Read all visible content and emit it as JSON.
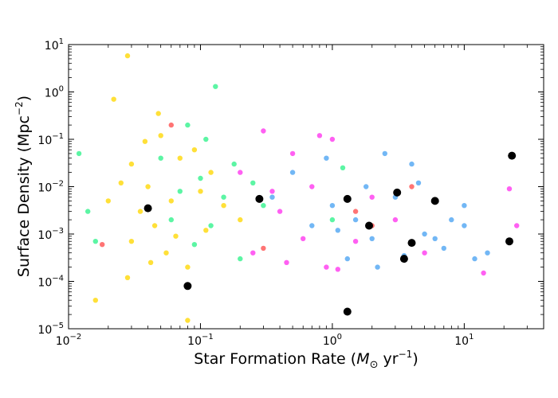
{
  "chart_data": {
    "type": "scatter",
    "xlabel_main": "Star Formation Rate (",
    "xlabel_sym": "M",
    "xlabel_sub": "⊙",
    "xlabel_rest": " yr",
    "xlabel_sup": "−1",
    "xlabel_close": ")",
    "ylabel_main": "Surface Density (Mpc",
    "ylabel_sup": "−2",
    "ylabel_close": ")",
    "xscale": "log",
    "yscale": "log",
    "xlim": [
      0.01,
      40
    ],
    "ylim": [
      1e-05,
      10
    ],
    "x_ticks": [
      {
        "value": 0.01,
        "base": "10",
        "exp": "−2"
      },
      {
        "value": 0.1,
        "base": "10",
        "exp": "−1"
      },
      {
        "value": 1,
        "base": "10",
        "exp": "0"
      },
      {
        "value": 10,
        "base": "10",
        "exp": "1"
      }
    ],
    "y_ticks": [
      {
        "value": 1e-05,
        "base": "10",
        "exp": "−5"
      },
      {
        "value": 0.0001,
        "base": "10",
        "exp": "−4"
      },
      {
        "value": 0.001,
        "base": "10",
        "exp": "−3"
      },
      {
        "value": 0.01,
        "base": "10",
        "exp": "−2"
      },
      {
        "value": 0.1,
        "base": "10",
        "exp": "−1"
      },
      {
        "value": 1,
        "base": "10",
        "exp": "0"
      },
      {
        "value": 10,
        "base": "10",
        "exp": "1"
      }
    ],
    "grid": false,
    "legend": "none",
    "series": [
      {
        "color": "#ffd700",
        "points": [
          {
            "x": 0.028,
            "y": 5.8
          },
          {
            "x": 0.022,
            "y": 0.7
          },
          {
            "x": 0.05,
            "y": 0.12
          },
          {
            "x": 0.03,
            "y": 0.03
          },
          {
            "x": 0.04,
            "y": 0.01
          },
          {
            "x": 0.06,
            "y": 0.005
          },
          {
            "x": 0.035,
            "y": 0.003
          },
          {
            "x": 0.1,
            "y": 0.008
          },
          {
            "x": 0.12,
            "y": 0.02
          },
          {
            "x": 0.07,
            "y": 0.04
          },
          {
            "x": 0.045,
            "y": 0.0015
          },
          {
            "x": 0.03,
            "y": 0.0007
          },
          {
            "x": 0.055,
            "y": 0.0004
          },
          {
            "x": 0.08,
            "y": 0.0002
          },
          {
            "x": 0.028,
            "y": 0.00012
          },
          {
            "x": 0.016,
            "y": 4e-05
          },
          {
            "x": 0.08,
            "y": 1.5e-05
          },
          {
            "x": 0.02,
            "y": 0.005
          },
          {
            "x": 0.025,
            "y": 0.012
          },
          {
            "x": 0.09,
            "y": 0.06
          },
          {
            "x": 0.15,
            "y": 0.004
          },
          {
            "x": 0.2,
            "y": 0.002
          },
          {
            "x": 0.065,
            "y": 0.0009
          },
          {
            "x": 0.042,
            "y": 0.00025
          },
          {
            "x": 0.11,
            "y": 0.0012
          },
          {
            "x": 0.038,
            "y": 0.09
          },
          {
            "x": 0.048,
            "y": 0.35
          }
        ]
      },
      {
        "color": "#2ef28a",
        "points": [
          {
            "x": 0.13,
            "y": 1.3
          },
          {
            "x": 0.08,
            "y": 0.2
          },
          {
            "x": 0.1,
            "y": 0.015
          },
          {
            "x": 0.15,
            "y": 0.006
          },
          {
            "x": 0.06,
            "y": 0.002
          },
          {
            "x": 0.18,
            "y": 0.03
          },
          {
            "x": 0.09,
            "y": 0.0006
          },
          {
            "x": 0.2,
            "y": 0.0003
          },
          {
            "x": 0.012,
            "y": 0.05
          },
          {
            "x": 0.014,
            "y": 0.003
          },
          {
            "x": 0.016,
            "y": 0.0007
          },
          {
            "x": 0.25,
            "y": 0.012
          },
          {
            "x": 0.3,
            "y": 0.004
          },
          {
            "x": 0.07,
            "y": 0.008
          },
          {
            "x": 0.11,
            "y": 0.1
          },
          {
            "x": 1.0,
            "y": 0.002
          },
          {
            "x": 1.2,
            "y": 0.025
          },
          {
            "x": 0.05,
            "y": 0.04
          },
          {
            "x": 0.12,
            "y": 0.0015
          }
        ]
      },
      {
        "color": "#ff33ee",
        "points": [
          {
            "x": 0.3,
            "y": 0.15
          },
          {
            "x": 0.5,
            "y": 0.05
          },
          {
            "x": 0.7,
            "y": 0.01
          },
          {
            "x": 0.4,
            "y": 0.003
          },
          {
            "x": 0.6,
            "y": 0.0008
          },
          {
            "x": 1.0,
            "y": 0.1
          },
          {
            "x": 0.25,
            "y": 0.0004
          },
          {
            "x": 0.9,
            "y": 0.0002
          },
          {
            "x": 22,
            "y": 0.009
          },
          {
            "x": 25,
            "y": 0.0015
          },
          {
            "x": 14,
            "y": 0.00015
          },
          {
            "x": 0.8,
            "y": 0.12
          },
          {
            "x": 2.0,
            "y": 0.006
          },
          {
            "x": 3.0,
            "y": 0.002
          },
          {
            "x": 1.5,
            "y": 0.0007
          },
          {
            "x": 0.35,
            "y": 0.008
          },
          {
            "x": 0.2,
            "y": 0.02
          },
          {
            "x": 5.0,
            "y": 0.0004
          },
          {
            "x": 0.45,
            "y": 0.00025
          },
          {
            "x": 1.1,
            "y": 0.00018
          }
        ]
      },
      {
        "color": "#4aa3f2",
        "points": [
          {
            "x": 1.0,
            "y": 0.004
          },
          {
            "x": 1.5,
            "y": 0.002
          },
          {
            "x": 2.0,
            "y": 0.0008
          },
          {
            "x": 3.0,
            "y": 0.006
          },
          {
            "x": 4.0,
            "y": 0.03
          },
          {
            "x": 5.0,
            "y": 0.001
          },
          {
            "x": 7.0,
            "y": 0.0005
          },
          {
            "x": 10,
            "y": 0.004
          },
          {
            "x": 12,
            "y": 0.0003
          },
          {
            "x": 15,
            "y": 0.0004
          },
          {
            "x": 0.9,
            "y": 0.04
          },
          {
            "x": 2.5,
            "y": 0.05
          },
          {
            "x": 1.3,
            "y": 0.0003
          },
          {
            "x": 0.7,
            "y": 0.0015
          },
          {
            "x": 6.0,
            "y": 0.0008
          },
          {
            "x": 8.0,
            "y": 0.002
          },
          {
            "x": 3.5,
            "y": 0.00035
          },
          {
            "x": 1.8,
            "y": 0.01
          },
          {
            "x": 0.5,
            "y": 0.02
          },
          {
            "x": 0.35,
            "y": 0.006
          },
          {
            "x": 2.2,
            "y": 0.0002
          },
          {
            "x": 4.5,
            "y": 0.012
          },
          {
            "x": 1.1,
            "y": 0.0012
          },
          {
            "x": 10,
            "y": 0.0015
          }
        ]
      },
      {
        "color": "#ff4d4d",
        "points": [
          {
            "x": 0.018,
            "y": 0.0006
          },
          {
            "x": 0.3,
            "y": 0.0005
          },
          {
            "x": 4.0,
            "y": 0.01
          },
          {
            "x": 2.0,
            "y": 0.0015
          },
          {
            "x": 0.06,
            "y": 0.2
          },
          {
            "x": 1.5,
            "y": 0.003
          }
        ]
      },
      {
        "color": "#000000",
        "size": "large",
        "points": [
          {
            "x": 0.04,
            "y": 0.0035
          },
          {
            "x": 0.08,
            "y": 8e-05
          },
          {
            "x": 0.28,
            "y": 0.0055
          },
          {
            "x": 1.3,
            "y": 0.0055
          },
          {
            "x": 1.3,
            "y": 2.3e-05
          },
          {
            "x": 1.9,
            "y": 0.0015
          },
          {
            "x": 3.1,
            "y": 0.0075
          },
          {
            "x": 3.5,
            "y": 0.0003
          },
          {
            "x": 4.0,
            "y": 0.00065
          },
          {
            "x": 6.0,
            "y": 0.005
          },
          {
            "x": 22,
            "y": 0.0007
          },
          {
            "x": 23,
            "y": 0.045
          }
        ]
      }
    ]
  }
}
